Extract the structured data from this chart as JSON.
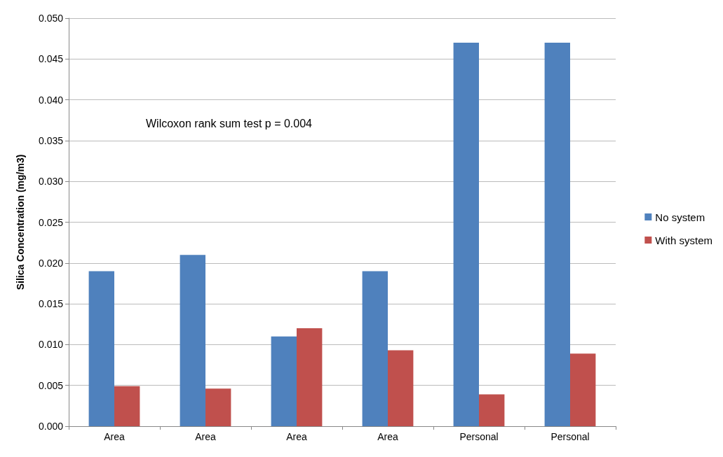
{
  "chart_data": {
    "type": "bar",
    "ylabel": "Silica Concentration (mg/m3)",
    "categories": [
      "Area",
      "Area",
      "Area",
      "Area",
      "Personal",
      "Personal"
    ],
    "series": [
      {
        "name": "No system",
        "color": "#4f81bd",
        "values": [
          0.019,
          0.021,
          0.011,
          0.019,
          0.047,
          0.047
        ]
      },
      {
        "name": "With system",
        "color": "#c0504d",
        "values": [
          0.0049,
          0.0046,
          0.012,
          0.0093,
          0.0039,
          0.0089
        ]
      }
    ],
    "ylim": [
      0,
      0.05
    ],
    "yticks": [
      {
        "value": 0,
        "label": "0.000"
      },
      {
        "value": 0.005,
        "label": "0.005"
      },
      {
        "value": 0.01,
        "label": "0.010"
      },
      {
        "value": 0.015,
        "label": "0.015"
      },
      {
        "value": 0.02,
        "label": "0.020"
      },
      {
        "value": 0.025,
        "label": "0.025"
      },
      {
        "value": 0.03,
        "label": "0.030"
      },
      {
        "value": 0.035,
        "label": "0.035"
      },
      {
        "value": 0.04,
        "label": "0.040"
      },
      {
        "value": 0.045,
        "label": "0.045"
      },
      {
        "value": 0.05,
        "label": "0.050"
      }
    ],
    "annotations": [
      "Wilcoxon rank sum test p = 0.004"
    ],
    "grid": "y",
    "legend": "right"
  }
}
